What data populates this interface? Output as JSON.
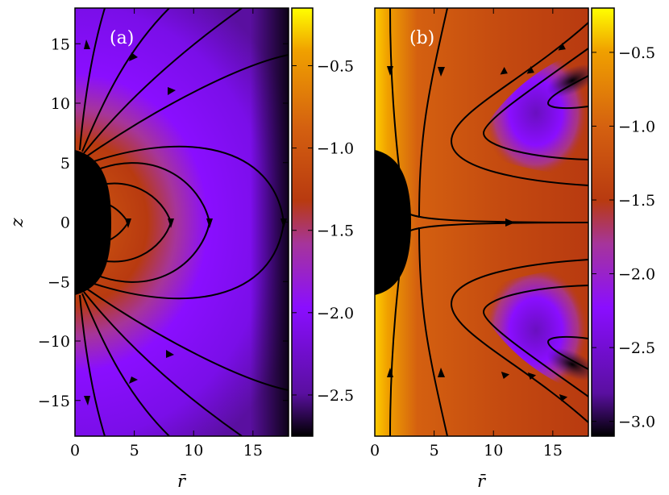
{
  "figure": {
    "xlabel": "r̄",
    "ylabel": "z"
  },
  "chart_data": [
    {
      "type": "heatmap",
      "panel_label": "(a)",
      "xlim": [
        0,
        18
      ],
      "ylim": [
        -18,
        18
      ],
      "x_ticks": [
        0,
        5,
        10,
        15
      ],
      "y_ticks": [
        -15,
        -10,
        -5,
        0,
        5,
        10,
        15
      ],
      "x_tick_labels": [
        "0",
        "5",
        "10",
        "15"
      ],
      "y_tick_labels": [
        "−15",
        "−10",
        "−5",
        "0",
        "5",
        "10",
        "15"
      ],
      "xlabel": "r̄",
      "ylabel": "z",
      "colorbar": {
        "range": [
          -2.75,
          -0.15
        ],
        "ticks": [
          -0.5,
          -1.0,
          -1.5,
          -2.0,
          -2.5
        ],
        "tick_labels": [
          "−0.5",
          "−1.0",
          "−1.5",
          "−2.0",
          "−2.5"
        ]
      },
      "colormap": [
        "#000000",
        "#5a0fa0",
        "#8a0eff",
        "#a6359a",
        "#b83a10",
        "#d46010",
        "#f0a000",
        "#ffff00"
      ],
      "obstacle": {
        "shape": "half-ellipse",
        "semi_axis_r": 3,
        "semi_axis_z": 6
      },
      "streamlines": "closed dipole-like loops from the upper half to the lower half of the central body, arrows pointing downward on the outer branches"
    },
    {
      "type": "heatmap",
      "panel_label": "(b)",
      "xlim": [
        0,
        18
      ],
      "ylim": [
        -18,
        18
      ],
      "x_ticks": [
        0,
        5,
        10,
        15
      ],
      "x_tick_labels": [
        "0",
        "5",
        "10",
        "15"
      ],
      "xlabel": "r̄",
      "colorbar": {
        "range": [
          -3.1,
          -0.2
        ],
        "ticks": [
          -0.5,
          -1.0,
          -1.5,
          -2.0,
          -2.5,
          -3.0
        ],
        "tick_labels": [
          "−0.5",
          "−1.0",
          "−1.5",
          "−2.0",
          "−2.5",
          "−3.0"
        ]
      },
      "colormap": [
        "#000000",
        "#5a0fa0",
        "#8a0eff",
        "#a6359a",
        "#b83a10",
        "#d46010",
        "#f0a000",
        "#ffff00"
      ],
      "obstacle": {
        "shape": "half-ellipse",
        "semi_axis_r": 3,
        "semi_axis_z": 6
      },
      "streamlines": "flow entering from the upper-right and lower-right toward the axis, turning and exiting radially along the equatorial plane z = 0"
    }
  ]
}
